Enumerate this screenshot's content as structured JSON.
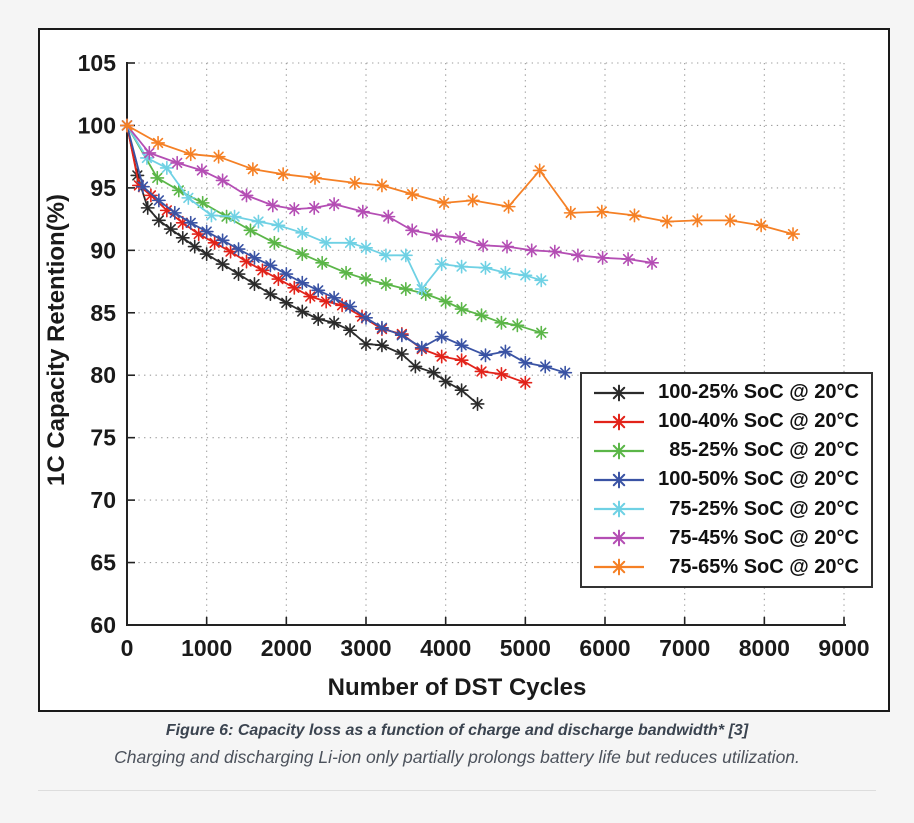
{
  "figure": {
    "caption_title": "Figure 6: Capacity loss as a function of charge and discharge bandwidth* [3]",
    "caption_subtitle": "Charging and discharging Li-ion only partially prolongs battery life but reduces utilization."
  },
  "colors": {
    "page_bg": "#f5f5f5",
    "panel_bg": "#ffffff",
    "panel_border": "#1a1a1a",
    "axis": "#222222",
    "grid": "#9a9a9a",
    "caption_title": "#3b4450",
    "caption_subtitle": "#4c525c",
    "divider": "#dddddd"
  },
  "chart_data": {
    "type": "line",
    "title": "",
    "xlabel": "Number of DST Cycles",
    "ylabel": "1C Capacity Retention(%)",
    "xlim": [
      0,
      9000
    ],
    "ylim": [
      60,
      105
    ],
    "x_ticks": [
      0,
      1000,
      2000,
      3000,
      4000,
      5000,
      6000,
      7000,
      8000,
      9000
    ],
    "y_ticks": [
      60,
      65,
      70,
      75,
      80,
      85,
      90,
      95,
      100,
      105
    ],
    "grid": "dotted",
    "marker": "asterisk",
    "legend_position": "lower right inside",
    "series": [
      {
        "label": "100-25% SoC @ 20°C",
        "color": "#2b2b2b",
        "points": [
          [
            0,
            100
          ],
          [
            130,
            96.0
          ],
          [
            260,
            93.4
          ],
          [
            400,
            92.4
          ],
          [
            550,
            91.7
          ],
          [
            700,
            91.0
          ],
          [
            850,
            90.3
          ],
          [
            1000,
            89.7
          ],
          [
            1200,
            88.9
          ],
          [
            1400,
            88.1
          ],
          [
            1600,
            87.3
          ],
          [
            1800,
            86.5
          ],
          [
            2000,
            85.8
          ],
          [
            2200,
            85.1
          ],
          [
            2400,
            84.5
          ],
          [
            2600,
            84.2
          ],
          [
            2800,
            83.6
          ],
          [
            3000,
            82.5
          ],
          [
            3200,
            82.4
          ],
          [
            3450,
            81.7
          ],
          [
            3620,
            80.7
          ],
          [
            3850,
            80.2
          ],
          [
            4000,
            79.5
          ],
          [
            4200,
            78.8
          ],
          [
            4400,
            77.7
          ]
        ]
      },
      {
        "label": "100-40% SoC @ 20°C",
        "color": "#e2231a",
        "points": [
          [
            0,
            100
          ],
          [
            150,
            95.2
          ],
          [
            300,
            94.4
          ],
          [
            500,
            93.2
          ],
          [
            700,
            92.2
          ],
          [
            900,
            91.3
          ],
          [
            1100,
            90.6
          ],
          [
            1300,
            89.9
          ],
          [
            1500,
            89.1
          ],
          [
            1700,
            88.4
          ],
          [
            1900,
            87.7
          ],
          [
            2100,
            87.0
          ],
          [
            2300,
            86.3
          ],
          [
            2500,
            85.9
          ],
          [
            2700,
            85.6
          ],
          [
            2950,
            84.7
          ],
          [
            3200,
            83.7
          ],
          [
            3450,
            83.3
          ],
          [
            3700,
            82.1
          ],
          [
            3950,
            81.5
          ],
          [
            4200,
            81.2
          ],
          [
            4450,
            80.3
          ],
          [
            4700,
            80.1
          ],
          [
            5000,
            79.4
          ]
        ]
      },
      {
        "label": "85-25% SoC @ 20°C",
        "color": "#5bb648",
        "points": [
          [
            0,
            100
          ],
          [
            380,
            95.8
          ],
          [
            650,
            94.8
          ],
          [
            950,
            93.8
          ],
          [
            1250,
            92.7
          ],
          [
            1550,
            91.6
          ],
          [
            1850,
            90.6
          ],
          [
            2200,
            89.7
          ],
          [
            2450,
            89.0
          ],
          [
            2750,
            88.2
          ],
          [
            3000,
            87.7
          ],
          [
            3250,
            87.3
          ],
          [
            3500,
            86.9
          ],
          [
            3750,
            86.5
          ],
          [
            4000,
            85.9
          ],
          [
            4200,
            85.3
          ],
          [
            4450,
            84.8
          ],
          [
            4700,
            84.2
          ],
          [
            4900,
            84.0
          ],
          [
            5200,
            83.4
          ]
        ]
      },
      {
        "label": "100-50% SoC @ 20°C",
        "color": "#3a53a4",
        "points": [
          [
            0,
            100
          ],
          [
            200,
            95.1
          ],
          [
            400,
            94.0
          ],
          [
            600,
            93.0
          ],
          [
            800,
            92.2
          ],
          [
            1000,
            91.5
          ],
          [
            1200,
            90.8
          ],
          [
            1400,
            90.1
          ],
          [
            1600,
            89.4
          ],
          [
            1800,
            88.8
          ],
          [
            2000,
            88.1
          ],
          [
            2200,
            87.4
          ],
          [
            2400,
            86.8
          ],
          [
            2600,
            86.2
          ],
          [
            2800,
            85.5
          ],
          [
            3000,
            84.6
          ],
          [
            3200,
            83.8
          ],
          [
            3450,
            83.2
          ],
          [
            3700,
            82.2
          ],
          [
            3950,
            83.1
          ],
          [
            4200,
            82.4
          ],
          [
            4500,
            81.6
          ],
          [
            4750,
            81.9
          ],
          [
            5000,
            81.0
          ],
          [
            5250,
            80.7
          ],
          [
            5500,
            80.2
          ]
        ]
      },
      {
        "label": "75-25% SoC @ 20°C",
        "color": "#6fd1e4",
        "points": [
          [
            0,
            100
          ],
          [
            250,
            97.4
          ],
          [
            500,
            96.6
          ],
          [
            770,
            94.2
          ],
          [
            1060,
            92.8
          ],
          [
            1350,
            92.7
          ],
          [
            1650,
            92.3
          ],
          [
            1900,
            92.0
          ],
          [
            2200,
            91.4
          ],
          [
            2500,
            90.6
          ],
          [
            2800,
            90.6
          ],
          [
            3000,
            90.2
          ],
          [
            3250,
            89.6
          ],
          [
            3500,
            89.6
          ],
          [
            3700,
            86.9
          ],
          [
            3950,
            88.9
          ],
          [
            4200,
            88.7
          ],
          [
            4500,
            88.6
          ],
          [
            4750,
            88.2
          ],
          [
            5000,
            88.0
          ],
          [
            5200,
            87.6
          ]
        ]
      },
      {
        "label": "75-45% SoC @ 20°C",
        "color": "#b44eb4",
        "points": [
          [
            0,
            100
          ],
          [
            280,
            97.8
          ],
          [
            630,
            97.0
          ],
          [
            940,
            96.4
          ],
          [
            1200,
            95.6
          ],
          [
            1500,
            94.4
          ],
          [
            1830,
            93.6
          ],
          [
            2100,
            93.3
          ],
          [
            2350,
            93.4
          ],
          [
            2600,
            93.7
          ],
          [
            2960,
            93.1
          ],
          [
            3280,
            92.7
          ],
          [
            3580,
            91.6
          ],
          [
            3890,
            91.2
          ],
          [
            4180,
            91.0
          ],
          [
            4470,
            90.4
          ],
          [
            4770,
            90.3
          ],
          [
            5080,
            90.0
          ],
          [
            5370,
            89.9
          ],
          [
            5660,
            89.6
          ],
          [
            5970,
            89.4
          ],
          [
            6290,
            89.3
          ],
          [
            6590,
            89.0
          ]
        ]
      },
      {
        "label": "75-65% SoC @ 20°C",
        "color": "#f58025",
        "points": [
          [
            0,
            100
          ],
          [
            390,
            98.6
          ],
          [
            800,
            97.7
          ],
          [
            1150,
            97.5
          ],
          [
            1580,
            96.5
          ],
          [
            1960,
            96.1
          ],
          [
            2360,
            95.8
          ],
          [
            2860,
            95.4
          ],
          [
            3200,
            95.2
          ],
          [
            3580,
            94.5
          ],
          [
            3980,
            93.8
          ],
          [
            4340,
            94.0
          ],
          [
            4790,
            93.5
          ],
          [
            5180,
            96.4
          ],
          [
            5570,
            93.0
          ],
          [
            5960,
            93.1
          ],
          [
            6370,
            92.8
          ],
          [
            6780,
            92.3
          ],
          [
            7160,
            92.4
          ],
          [
            7570,
            92.4
          ],
          [
            7960,
            92.0
          ],
          [
            8360,
            91.3
          ]
        ]
      }
    ]
  }
}
